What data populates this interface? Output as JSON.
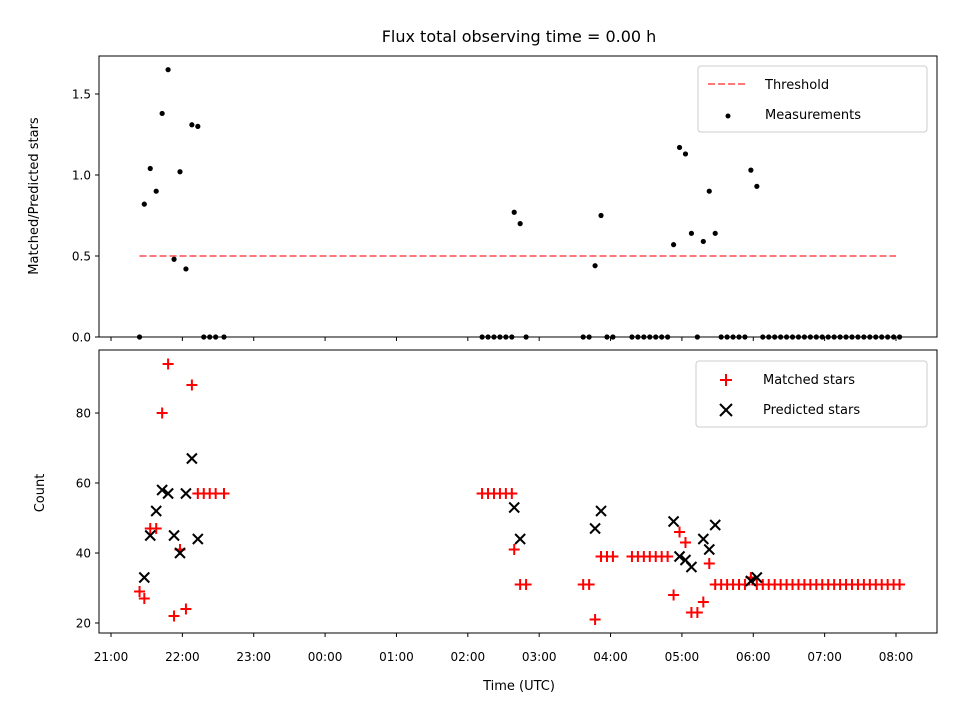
{
  "chart_data": [
    {
      "type": "scatter",
      "title": "Flux total observing time = 0.00 h",
      "ylabel": "Matched/Predicted stars",
      "xlabel": "",
      "x_unit": "time (UTC)",
      "xlim": [
        "21:00",
        "08:45"
      ],
      "ylim": [
        0,
        1.75
      ],
      "yticks": [
        "0.0",
        "0.5",
        "1.0",
        "1.5"
      ],
      "xticks": [
        "21:00",
        "22:00",
        "23:00",
        "00:00",
        "01:00",
        "02:00",
        "03:00",
        "04:00",
        "05:00",
        "06:00",
        "07:00",
        "08:00"
      ],
      "grid": false,
      "legend": {
        "placement": "top-right",
        "entries": [
          "Threshold",
          "Measurements"
        ]
      },
      "threshold": {
        "name": "Threshold",
        "value": 0.5,
        "x_start": "21:24",
        "x_end": "08:00",
        "color": "#ff7777",
        "style": "dashed"
      },
      "series": [
        {
          "name": "Measurements",
          "color": "#000000",
          "points": [
            [
              "21:24",
              0.0
            ],
            [
              "21:28",
              0.82
            ],
            [
              "21:33",
              1.04
            ],
            [
              "21:38",
              0.9
            ],
            [
              "21:43",
              1.38
            ],
            [
              "21:48",
              1.65
            ],
            [
              "21:53",
              0.48
            ],
            [
              "21:58",
              1.02
            ],
            [
              "22:03",
              0.42
            ],
            [
              "22:08",
              1.31
            ],
            [
              "22:13",
              1.3
            ],
            [
              "22:18",
              0.0
            ],
            [
              "22:23",
              0.0
            ],
            [
              "22:28",
              0.0
            ],
            [
              "22:35",
              0.0
            ],
            [
              "02:12",
              0.0
            ],
            [
              "02:17",
              0.0
            ],
            [
              "02:22",
              0.0
            ],
            [
              "02:27",
              0.0
            ],
            [
              "02:32",
              0.0
            ],
            [
              "02:37",
              0.0
            ],
            [
              "02:39",
              0.77
            ],
            [
              "02:44",
              0.7
            ],
            [
              "02:49",
              0.0
            ],
            [
              "03:37",
              0.0
            ],
            [
              "03:42",
              0.0
            ],
            [
              "03:47",
              0.44
            ],
            [
              "03:52",
              0.75
            ],
            [
              "03:57",
              0.0
            ],
            [
              "04:02",
              0.0
            ],
            [
              "04:18",
              0.0
            ],
            [
              "04:23",
              0.0
            ],
            [
              "04:28",
              0.0
            ],
            [
              "04:33",
              0.0
            ],
            [
              "04:38",
              0.0
            ],
            [
              "04:43",
              0.0
            ],
            [
              "04:48",
              0.0
            ],
            [
              "04:53",
              0.57
            ],
            [
              "04:58",
              1.17
            ],
            [
              "05:03",
              1.13
            ],
            [
              "05:08",
              0.64
            ],
            [
              "05:13",
              0.0
            ],
            [
              "05:18",
              0.59
            ],
            [
              "05:23",
              0.9
            ],
            [
              "05:28",
              0.64
            ],
            [
              "05:33",
              0.0
            ],
            [
              "05:38",
              0.0
            ],
            [
              "05:43",
              0.0
            ],
            [
              "05:48",
              0.0
            ],
            [
              "05:53",
              0.0
            ],
            [
              "05:58",
              1.03
            ],
            [
              "06:03",
              0.93
            ],
            [
              "06:08",
              0.0
            ],
            [
              "06:13",
              0.0
            ],
            [
              "06:18",
              0.0
            ],
            [
              "06:23",
              0.0
            ],
            [
              "06:28",
              0.0
            ],
            [
              "06:33",
              0.0
            ],
            [
              "06:38",
              0.0
            ],
            [
              "06:43",
              0.0
            ],
            [
              "06:48",
              0.0
            ],
            [
              "06:53",
              0.0
            ],
            [
              "06:58",
              0.0
            ],
            [
              "07:03",
              0.0
            ],
            [
              "07:08",
              0.0
            ],
            [
              "07:13",
              0.0
            ],
            [
              "07:18",
              0.0
            ],
            [
              "07:23",
              0.0
            ],
            [
              "07:28",
              0.0
            ],
            [
              "07:33",
              0.0
            ],
            [
              "07:38",
              0.0
            ],
            [
              "07:43",
              0.0
            ],
            [
              "07:48",
              0.0
            ],
            [
              "07:53",
              0.0
            ],
            [
              "07:58",
              0.0
            ],
            [
              "08:03",
              0.0
            ]
          ]
        }
      ]
    },
    {
      "type": "scatter",
      "title": "",
      "ylabel": "Count",
      "xlabel": "Time (UTC)",
      "xlim": [
        "21:00",
        "08:45"
      ],
      "ylim": [
        18,
        97
      ],
      "yticks": [
        "20",
        "40",
        "60",
        "80"
      ],
      "xticks": [
        "21:00",
        "22:00",
        "23:00",
        "00:00",
        "01:00",
        "02:00",
        "03:00",
        "04:00",
        "05:00",
        "06:00",
        "07:00",
        "08:00"
      ],
      "grid": false,
      "legend": {
        "placement": "top-right",
        "entries": [
          "Matched stars",
          "Predicted stars"
        ]
      },
      "series": [
        {
          "name": "Matched stars",
          "marker": "+",
          "color": "#ff0000",
          "points": [
            [
              "21:24",
              29
            ],
            [
              "21:28",
              27
            ],
            [
              "21:33",
              47
            ],
            [
              "21:38",
              47
            ],
            [
              "21:43",
              80
            ],
            [
              "21:48",
              94
            ],
            [
              "21:53",
              22
            ],
            [
              "21:58",
              41
            ],
            [
              "22:03",
              24
            ],
            [
              "22:08",
              88
            ],
            [
              "22:13",
              57
            ],
            [
              "22:18",
              57
            ],
            [
              "22:23",
              57
            ],
            [
              "22:28",
              57
            ],
            [
              "22:35",
              57
            ],
            [
              "02:12",
              57
            ],
            [
              "02:17",
              57
            ],
            [
              "02:22",
              57
            ],
            [
              "02:27",
              57
            ],
            [
              "02:32",
              57
            ],
            [
              "02:37",
              57
            ],
            [
              "02:39",
              41
            ],
            [
              "02:44",
              31
            ],
            [
              "02:49",
              31
            ],
            [
              "03:37",
              31
            ],
            [
              "03:42",
              31
            ],
            [
              "03:47",
              21
            ],
            [
              "03:52",
              39
            ],
            [
              "03:57",
              39
            ],
            [
              "04:02",
              39
            ],
            [
              "04:18",
              39
            ],
            [
              "04:23",
              39
            ],
            [
              "04:28",
              39
            ],
            [
              "04:33",
              39
            ],
            [
              "04:38",
              39
            ],
            [
              "04:43",
              39
            ],
            [
              "04:48",
              39
            ],
            [
              "04:53",
              28
            ],
            [
              "04:58",
              46
            ],
            [
              "05:03",
              43
            ],
            [
              "05:08",
              23
            ],
            [
              "05:13",
              23
            ],
            [
              "05:18",
              26
            ],
            [
              "05:23",
              37
            ],
            [
              "05:28",
              31
            ],
            [
              "05:33",
              31
            ],
            [
              "05:38",
              31
            ],
            [
              "05:43",
              31
            ],
            [
              "05:48",
              31
            ],
            [
              "05:53",
              31
            ],
            [
              "05:58",
              33
            ],
            [
              "06:03",
              31
            ],
            [
              "06:08",
              31
            ],
            [
              "06:13",
              31
            ],
            [
              "06:18",
              31
            ],
            [
              "06:23",
              31
            ],
            [
              "06:28",
              31
            ],
            [
              "06:33",
              31
            ],
            [
              "06:38",
              31
            ],
            [
              "06:43",
              31
            ],
            [
              "06:48",
              31
            ],
            [
              "06:53",
              31
            ],
            [
              "06:58",
              31
            ],
            [
              "07:03",
              31
            ],
            [
              "07:08",
              31
            ],
            [
              "07:13",
              31
            ],
            [
              "07:18",
              31
            ],
            [
              "07:23",
              31
            ],
            [
              "07:28",
              31
            ],
            [
              "07:33",
              31
            ],
            [
              "07:38",
              31
            ],
            [
              "07:43",
              31
            ],
            [
              "07:48",
              31
            ],
            [
              "07:53",
              31
            ],
            [
              "07:58",
              31
            ],
            [
              "08:03",
              31
            ]
          ]
        },
        {
          "name": "Predicted stars",
          "marker": "x",
          "color": "#000000",
          "points": [
            [
              "21:28",
              33
            ],
            [
              "21:33",
              45
            ],
            [
              "21:38",
              52
            ],
            [
              "21:43",
              58
            ],
            [
              "21:48",
              57
            ],
            [
              "21:53",
              45
            ],
            [
              "21:58",
              40
            ],
            [
              "22:03",
              57
            ],
            [
              "22:08",
              67
            ],
            [
              "22:13",
              44
            ],
            [
              "02:39",
              53
            ],
            [
              "02:44",
              44
            ],
            [
              "03:47",
              47
            ],
            [
              "03:52",
              52
            ],
            [
              "04:53",
              49
            ],
            [
              "04:58",
              39
            ],
            [
              "05:03",
              38
            ],
            [
              "05:08",
              36
            ],
            [
              "05:18",
              44
            ],
            [
              "05:23",
              41
            ],
            [
              "05:28",
              48
            ],
            [
              "05:58",
              32
            ],
            [
              "06:03",
              33
            ]
          ]
        }
      ]
    }
  ]
}
